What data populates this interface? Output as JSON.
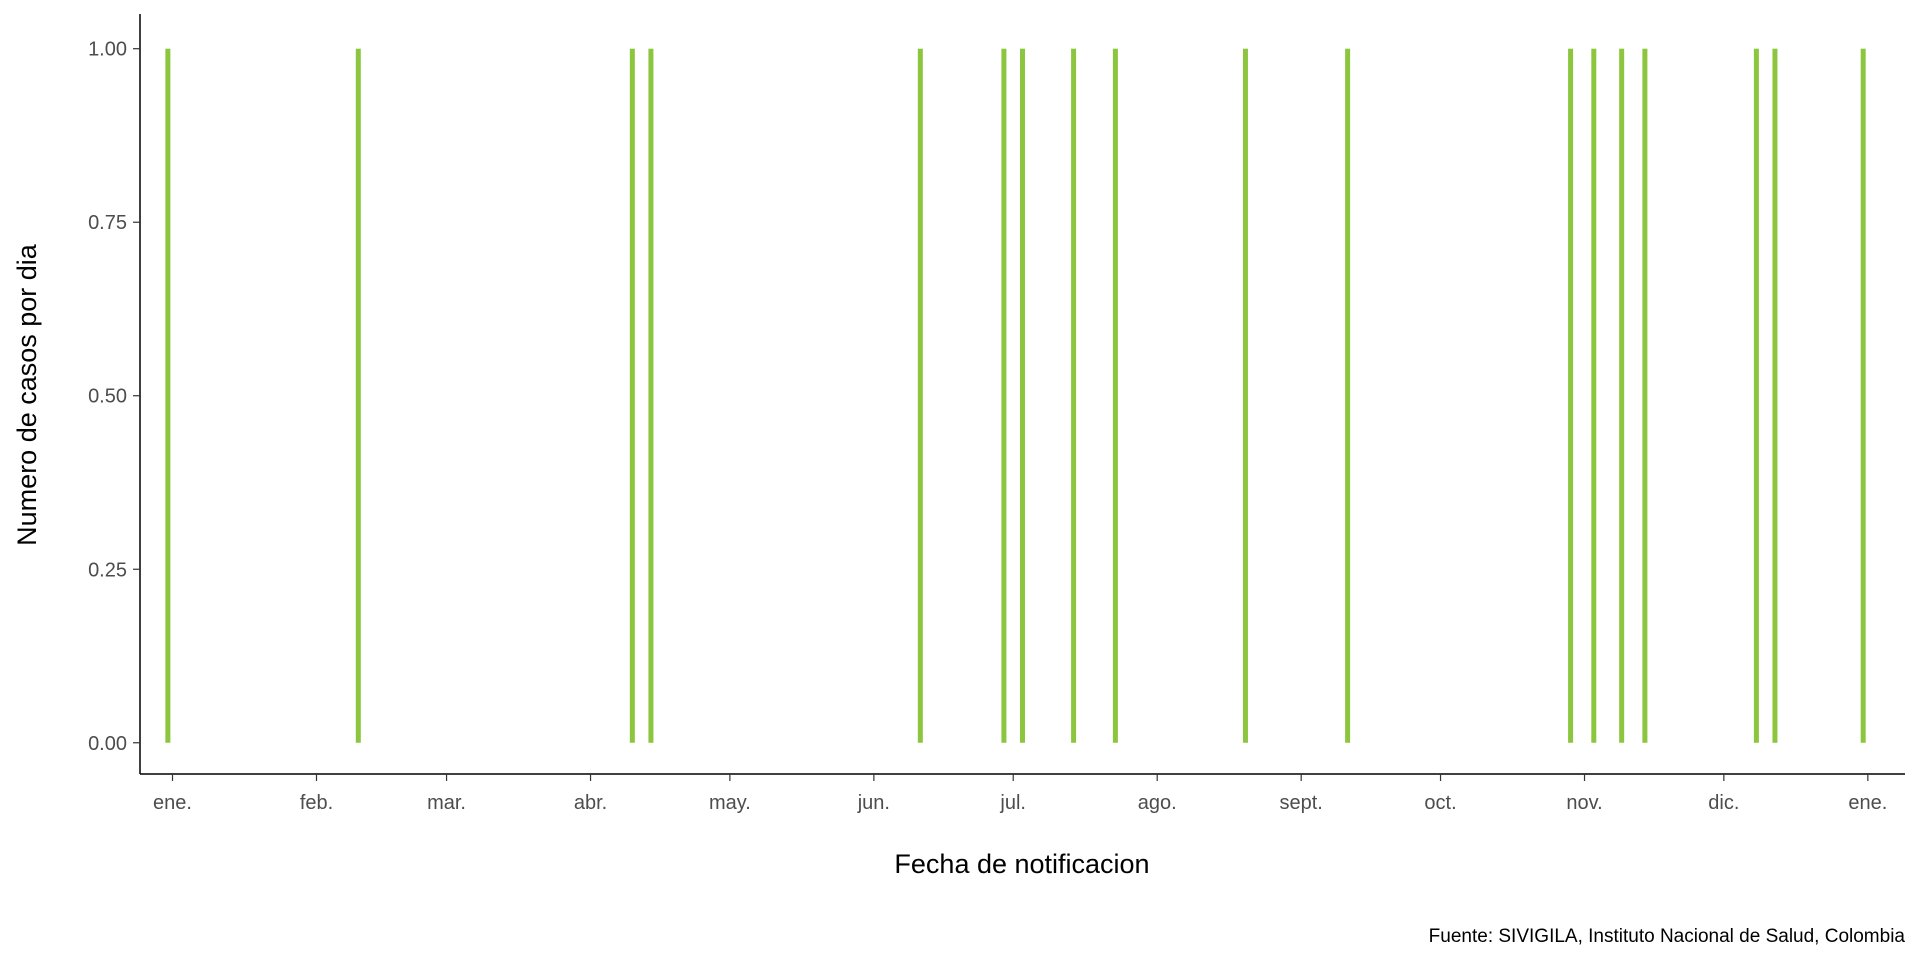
{
  "chart_data": {
    "type": "bar",
    "title": "",
    "xlabel": "Fecha de notificacion",
    "ylabel": "Numero de casos por dia",
    "caption": "Fuente: SIVIGILA, Instituto Nacional de Salud, Colombia",
    "x_range": [
      "2021-12-25",
      "2023-01-09"
    ],
    "ylim": [
      -0.045,
      1.05
    ],
    "y_ticks": [
      0,
      0.25,
      0.5,
      0.75,
      1
    ],
    "y_tick_labels": [
      "0.00",
      "0.25",
      "0.50",
      "0.75",
      "1.00"
    ],
    "x_ticks": [
      "2022-01-01",
      "2022-02-01",
      "2022-03-01",
      "2022-04-01",
      "2022-05-01",
      "2022-06-01",
      "2022-07-01",
      "2022-08-01",
      "2022-09-01",
      "2022-10-01",
      "2022-11-01",
      "2022-12-01",
      "2023-01-01"
    ],
    "x_tick_labels": [
      "ene.",
      "feb.",
      "mar.",
      "abr.",
      "may.",
      "jun.",
      "jul.",
      "ago.",
      "sept.",
      "oct.",
      "nov.",
      "dic.",
      "ene."
    ],
    "grid": false,
    "legend": "none",
    "bar_color": "#8cc63f",
    "dates": [
      "2021-12-31",
      "2022-02-10",
      "2022-04-10",
      "2022-04-14",
      "2022-06-11",
      "2022-06-29",
      "2022-07-03",
      "2022-07-14",
      "2022-07-23",
      "2022-08-20",
      "2022-09-11",
      "2022-10-29",
      "2022-11-03",
      "2022-11-09",
      "2022-11-14",
      "2022-12-08",
      "2022-12-12",
      "2022-12-31"
    ],
    "values": [
      1,
      1,
      1,
      1,
      1,
      1,
      1,
      1,
      1,
      1,
      1,
      1,
      1,
      1,
      1,
      1,
      1,
      1
    ]
  }
}
